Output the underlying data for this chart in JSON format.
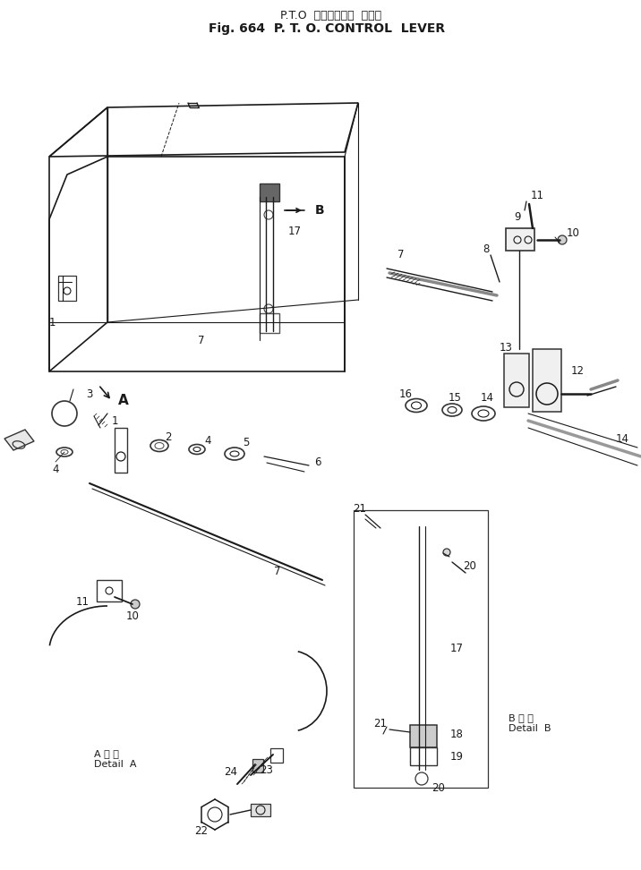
{
  "title_japanese": "P.T.O  コントロール  レバー",
  "title_english": "Fig. 664  P. T. O. CONTROL  LEVER",
  "bg": "#ffffff",
  "lc": "#1a1a1a",
  "fig_w": 7.16,
  "fig_h": 9.72,
  "dpi": 100,
  "detail_a": "A 拡 大\nDetail  A",
  "detail_b": "B 拡 大\nDetail  B",
  "label_fs": 8.5,
  "title_fs1": 9,
  "title_fs2": 10
}
